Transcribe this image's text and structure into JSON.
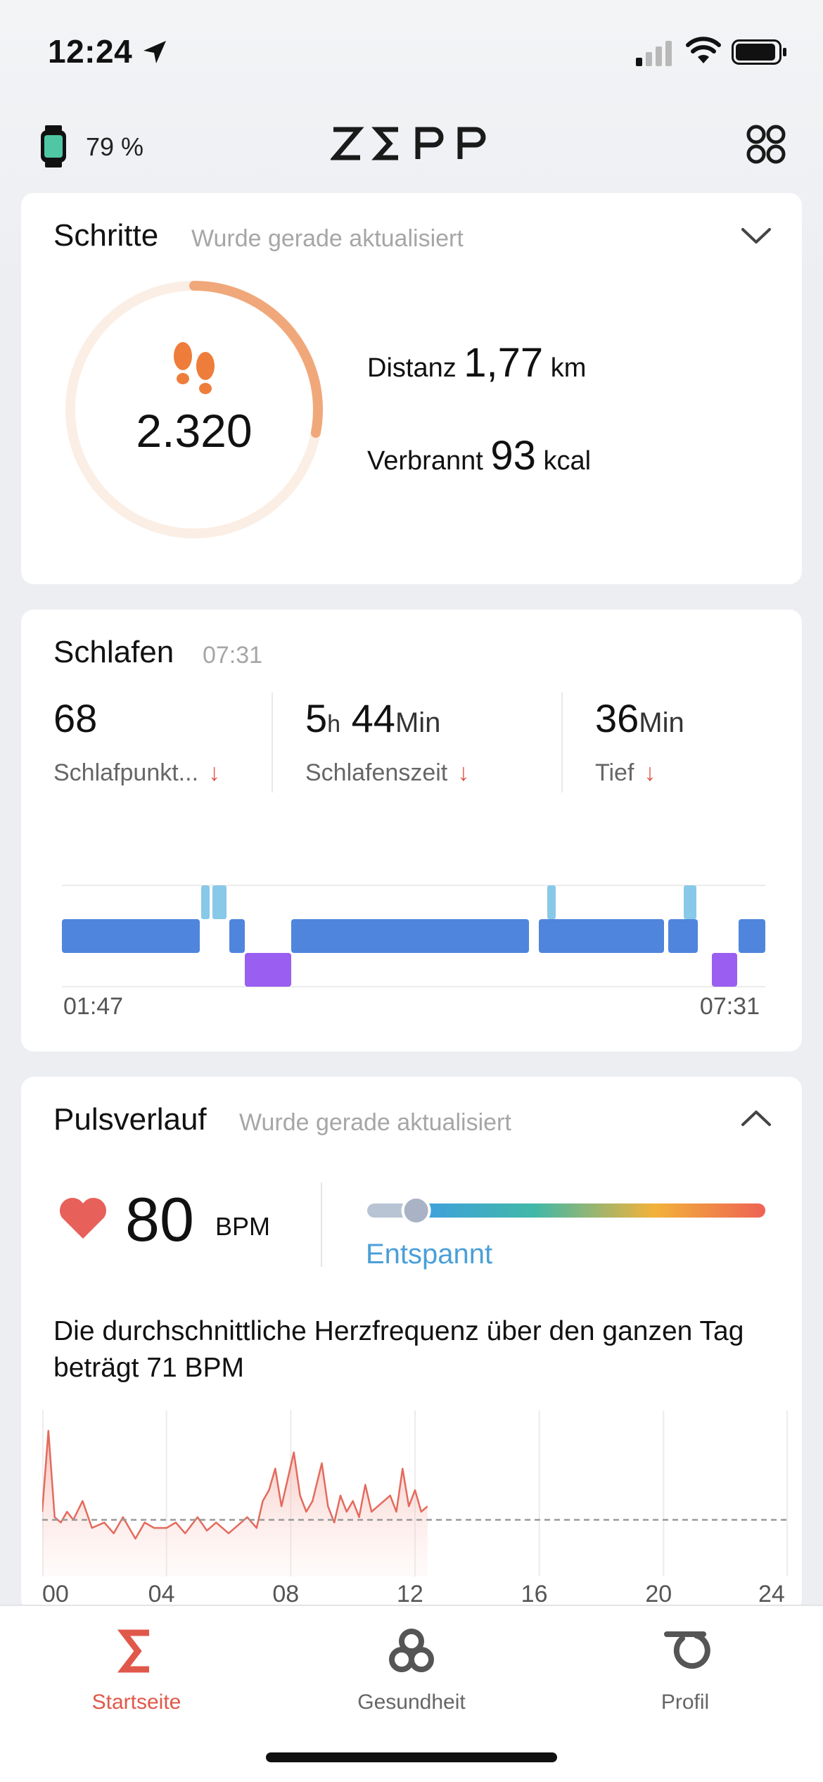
{
  "status_bar": {
    "time": "12:24"
  },
  "header": {
    "watch_battery": "79 %",
    "logo": "ZΣPP"
  },
  "steps_card": {
    "title": "Schritte",
    "subtitle": "Wurde gerade aktualisiert",
    "steps": "2.320",
    "progress": 0.28,
    "distance_label": "Distanz",
    "distance_value": "1,77",
    "distance_unit": "km",
    "burned_label": "Verbrannt",
    "burned_value": "93",
    "burned_unit": "kcal",
    "colors": {
      "ring_track": "#fbeee4",
      "ring_fill": "#f0a87a",
      "foot": "#ee7d3b"
    }
  },
  "sleep_card": {
    "title": "Schlafen",
    "time": "07:31",
    "score_value": "68",
    "score_label": "Schlafpunkt...",
    "duration_h": "5",
    "duration_h_unit": "h",
    "duration_m": "44",
    "duration_m_unit": "Min",
    "duration_label": "Schlafenszeit",
    "deep_value": "36",
    "deep_unit": "Min",
    "deep_label": "Tief",
    "arrow": "↓",
    "start_time": "01:47",
    "end_time": "07:31",
    "colors": {
      "light": "#4f85dc",
      "awake": "#88c8e8",
      "deep": "#9a5ff0"
    }
  },
  "pulse_card": {
    "title": "Pulsverlauf",
    "subtitle": "Wurde gerade aktualisiert",
    "bpm": "80",
    "bpm_unit": "BPM",
    "zone": "Entspannt",
    "zone_position": 0.12,
    "avg_text": "Die durchschnittliche Herzfrequenz über den ganzen Tag beträgt 71 BPM",
    "colors": {
      "line": "#e46a5c",
      "zone_text": "#4a9fd8"
    }
  },
  "chart_data": {
    "type": "area",
    "title": "",
    "xlabel": "",
    "ylabel": "",
    "x_ticks": [
      "00",
      "04",
      "08",
      "12",
      "16",
      "20",
      "24"
    ],
    "x_range": [
      0,
      24
    ],
    "y_range": [
      50,
      110
    ],
    "average": 71,
    "series": [
      {
        "x": [
          0,
          0.2,
          0.4,
          0.6,
          0.8,
          1,
          1.3,
          1.6,
          2,
          2.3,
          2.6,
          3,
          3.3,
          3.6,
          4,
          4.3,
          4.6,
          5,
          5.3,
          5.6,
          6,
          6.3,
          6.6,
          6.9,
          7.1,
          7.3,
          7.5,
          7.7,
          7.9,
          8.1,
          8.3,
          8.5,
          8.7,
          9,
          9.2,
          9.4,
          9.6,
          9.8,
          10,
          10.2,
          10.4,
          10.6,
          10.8,
          11,
          11.2,
          11.4,
          11.6,
          11.8,
          12,
          12.2,
          12.4
        ],
        "values": [
          74,
          104,
          72,
          70,
          74,
          71,
          78,
          68,
          70,
          66,
          72,
          64,
          70,
          68,
          68,
          70,
          66,
          72,
          67,
          70,
          66,
          69,
          72,
          68,
          78,
          82,
          90,
          76,
          86,
          96,
          80,
          74,
          78,
          92,
          76,
          70,
          80,
          74,
          78,
          72,
          84,
          74,
          76,
          78,
          80,
          74,
          90,
          76,
          82,
          74,
          76
        ]
      }
    ]
  },
  "tabbar": {
    "tabs": [
      {
        "label": "Startseite"
      },
      {
        "label": "Gesundheit"
      },
      {
        "label": "Profil"
      }
    ]
  }
}
